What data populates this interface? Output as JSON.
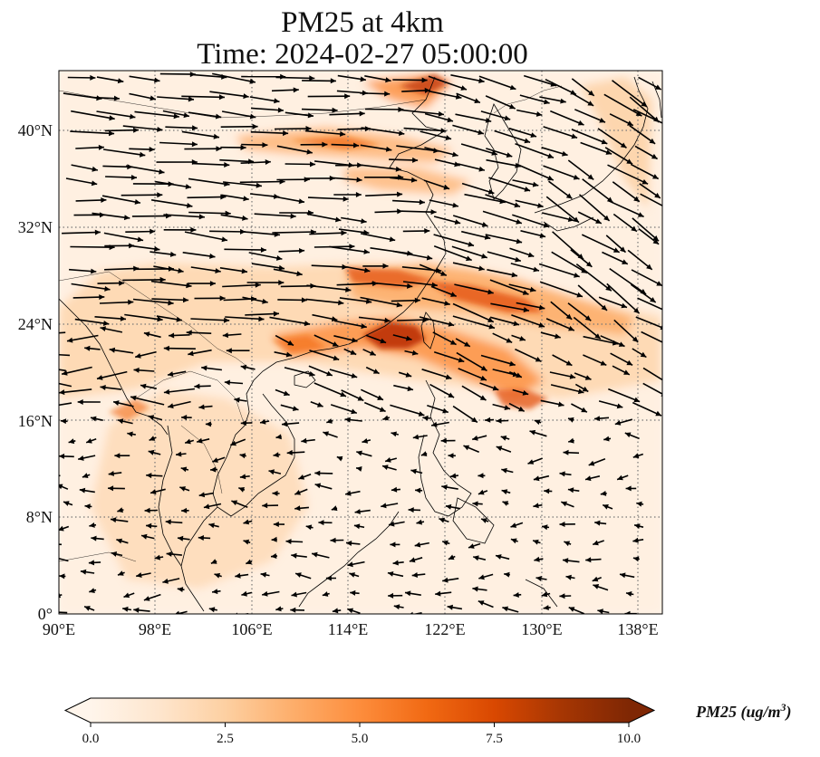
{
  "title": {
    "line1": "PM25 at 4km",
    "line2": "Time: 2024-02-27 05:00:00"
  },
  "map": {
    "lon_labels": [
      "90°E",
      "98°E",
      "106°E",
      "114°E",
      "122°E",
      "130°E",
      "138°E"
    ],
    "lat_labels": [
      "0°",
      "8°N",
      "16°N",
      "24°N",
      "32°N",
      "40°N"
    ],
    "background_color": "#fff5eb",
    "land_outline_color": "#000000",
    "vector_color": "#000000",
    "gridline_style": "dotted"
  },
  "colorbar": {
    "label": "PM25 (ug/m³)",
    "label_prefix": "PM25 (ug/m",
    "label_sup": "3",
    "label_suffix": ")",
    "ticks": [
      "0.0",
      "2.5",
      "5.0",
      "7.5",
      "10.0"
    ],
    "colormap": [
      "#fff5eb",
      "#fee6ce",
      "#fdd0a2",
      "#fdae6b",
      "#fd8d3c",
      "#f16913",
      "#d94801",
      "#a63603",
      "#7f2704"
    ],
    "extend": "both"
  }
}
